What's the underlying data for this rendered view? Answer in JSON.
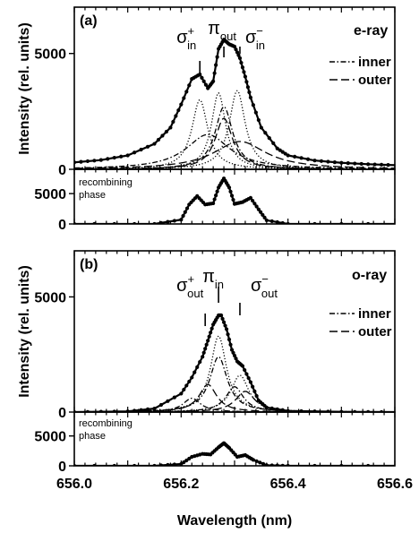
{
  "figure": {
    "xlabel": "Wavelength (nm)",
    "ylabel": "Intensity (rel. units)",
    "x_ticks": [
      "656.0",
      "656.2",
      "656.4",
      "656.6"
    ]
  },
  "chart_data": [
    {
      "type": "line",
      "panel": "a",
      "panel_label": "(a)",
      "ray_label": "e-ray",
      "xlim": [
        656.0,
        656.6
      ],
      "ylim": [
        0,
        7000
      ],
      "y_ticks": [
        "0",
        "5000"
      ],
      "y_tick_values": [
        0,
        5000
      ],
      "legend": {
        "position": "top-right",
        "entries": [
          {
            "label": "inner",
            "style": "dash-dot"
          },
          {
            "label": "outer",
            "style": "long-dash"
          }
        ]
      },
      "annotations": [
        {
          "base": "σ",
          "sup": "+",
          "sub": "in",
          "x": 656.235
        },
        {
          "base": "π",
          "sup": "",
          "sub": "out",
          "x": 656.28
        },
        {
          "base": "σ",
          "sup": "−",
          "sub": "in",
          "x": 656.31
        }
      ],
      "total": {
        "x": [
          656.0,
          656.05,
          656.1,
          656.15,
          656.18,
          656.2,
          656.22,
          656.235,
          656.25,
          656.26,
          656.27,
          656.28,
          656.29,
          656.3,
          656.31,
          656.32,
          656.33,
          656.35,
          656.38,
          656.4,
          656.45,
          656.5,
          656.55,
          656.6
        ],
        "y": [
          300,
          400,
          600,
          1100,
          1800,
          2800,
          3900,
          4100,
          3500,
          3800,
          5200,
          5600,
          5400,
          5300,
          4800,
          4000,
          3100,
          1800,
          900,
          600,
          380,
          280,
          220,
          180
        ]
      },
      "components": [
        {
          "name": "",
          "style": "dotted",
          "center": 656.235,
          "width": 0.018,
          "amp": 3000
        },
        {
          "name": "",
          "style": "dotted",
          "center": 656.27,
          "width": 0.016,
          "amp": 3300
        },
        {
          "name": "",
          "style": "dotted",
          "center": 656.305,
          "width": 0.018,
          "amp": 3400
        },
        {
          "name": "",
          "style": "dash-dot",
          "center": 656.25,
          "width": 0.05,
          "amp": 1500
        },
        {
          "name": "",
          "style": "dash-dot",
          "center": 656.28,
          "width": 0.02,
          "amp": 2700
        },
        {
          "name": "",
          "style": "long-dash",
          "center": 656.28,
          "width": 0.02,
          "amp": 2200
        },
        {
          "name": "",
          "style": "long-dash",
          "center": 656.31,
          "width": 0.06,
          "amp": 1200
        }
      ]
    },
    {
      "type": "line",
      "panel": "a-recombining",
      "label_lines": [
        "recombining",
        "phase"
      ],
      "xlim": [
        656.0,
        656.6
      ],
      "ylim": [
        0,
        9000
      ],
      "y_ticks": [
        "0",
        "5000"
      ],
      "y_tick_values": [
        0,
        5000
      ],
      "total": {
        "x": [
          656.0,
          656.15,
          656.2,
          656.215,
          656.23,
          656.245,
          656.26,
          656.27,
          656.28,
          656.29,
          656.3,
          656.315,
          656.33,
          656.345,
          656.36,
          656.4,
          656.6
        ],
        "y": [
          0,
          0,
          700,
          3200,
          4600,
          3200,
          3400,
          6000,
          7500,
          6000,
          3300,
          3600,
          4300,
          2400,
          600,
          0,
          0
        ]
      }
    },
    {
      "type": "line",
      "panel": "b",
      "panel_label": "(b)",
      "ray_label": "o-ray",
      "xlim": [
        656.0,
        656.6
      ],
      "ylim": [
        0,
        7000
      ],
      "y_ticks": [
        "0",
        "5000"
      ],
      "y_tick_values": [
        0,
        5000
      ],
      "legend": {
        "position": "top-right",
        "entries": [
          {
            "label": "inner",
            "style": "dash-dot"
          },
          {
            "label": "outer",
            "style": "long-dash"
          }
        ]
      },
      "annotations": [
        {
          "base": "σ",
          "sup": "+",
          "sub": "out",
          "x": 656.245
        },
        {
          "base": "π",
          "sup": "",
          "sub": "in",
          "x": 656.27
        },
        {
          "base": "σ",
          "sup": "−",
          "sub": "out",
          "x": 656.31
        }
      ],
      "total": {
        "x": [
          656.0,
          656.1,
          656.15,
          656.2,
          656.22,
          656.24,
          656.25,
          656.26,
          656.27,
          656.275,
          656.285,
          656.295,
          656.305,
          656.315,
          656.33,
          656.345,
          656.36,
          656.4,
          656.5,
          656.6
        ],
        "y": [
          0,
          30,
          150,
          800,
          1500,
          2400,
          3100,
          3800,
          4200,
          4200,
          3600,
          2700,
          2200,
          2000,
          1300,
          500,
          200,
          50,
          10,
          0
        ]
      },
      "components": [
        {
          "name": "",
          "style": "dotted",
          "center": 656.27,
          "width": 0.018,
          "amp": 3300
        },
        {
          "name": "",
          "style": "dotted",
          "center": 656.31,
          "width": 0.02,
          "amp": 1600
        },
        {
          "name": "",
          "style": "dash-dot",
          "center": 656.27,
          "width": 0.02,
          "amp": 2400
        },
        {
          "name": "",
          "style": "dash-dot",
          "center": 656.3,
          "width": 0.02,
          "amp": 1100
        },
        {
          "name": "",
          "style": "long-dash",
          "center": 656.25,
          "width": 0.02,
          "amp": 1200
        },
        {
          "name": "",
          "style": "long-dash",
          "center": 656.32,
          "width": 0.022,
          "amp": 900
        },
        {
          "name": "",
          "style": "dash-dot",
          "center": 656.22,
          "width": 0.02,
          "amp": 600
        }
      ]
    },
    {
      "type": "line",
      "panel": "b-recombining",
      "label_lines": [
        "recombining",
        "phase"
      ],
      "xlim": [
        656.0,
        656.6
      ],
      "ylim": [
        0,
        9000
      ],
      "y_ticks": [
        "0",
        "5000"
      ],
      "y_tick_values": [
        0,
        5000
      ],
      "total": {
        "x": [
          656.0,
          656.15,
          656.2,
          656.22,
          656.24,
          656.255,
          656.27,
          656.28,
          656.29,
          656.305,
          656.32,
          656.335,
          656.36,
          656.4,
          656.6
        ],
        "y": [
          0,
          0,
          300,
          1500,
          2000,
          1900,
          3100,
          3800,
          3000,
          1500,
          1800,
          1000,
          100,
          0,
          0
        ]
      }
    }
  ]
}
